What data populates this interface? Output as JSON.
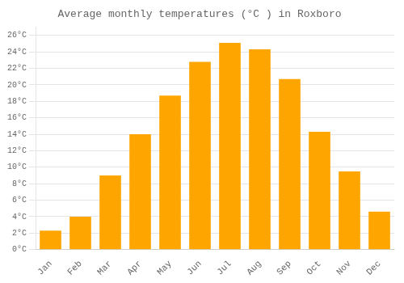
{
  "chart_data": {
    "type": "bar",
    "title": "Average monthly temperatures (°C ) in Roxboro",
    "categories": [
      "Jan",
      "Feb",
      "Mar",
      "Apr",
      "May",
      "Jun",
      "Jul",
      "Aug",
      "Sep",
      "Oct",
      "Nov",
      "Dec"
    ],
    "values": [
      2.3,
      4.0,
      9.0,
      14.0,
      18.7,
      22.8,
      25.1,
      24.3,
      20.7,
      14.3,
      9.5,
      4.6
    ],
    "color": "#FFA500",
    "ylim": [
      0,
      27
    ],
    "yticks": [
      {
        "value": 0,
        "label": "0°C"
      },
      {
        "value": 2,
        "label": "2°C"
      },
      {
        "value": 4,
        "label": "4°C"
      },
      {
        "value": 6,
        "label": "6°C"
      },
      {
        "value": 8,
        "label": "8°C"
      },
      {
        "value": 10,
        "label": "10°C"
      },
      {
        "value": 12,
        "label": "12°C"
      },
      {
        "value": 14,
        "label": "14°C"
      },
      {
        "value": 16,
        "label": "16°C"
      },
      {
        "value": 18,
        "label": "18°C"
      },
      {
        "value": 20,
        "label": "20°C"
      },
      {
        "value": 22,
        "label": "22°C"
      },
      {
        "value": 24,
        "label": "24°C"
      },
      {
        "value": 26,
        "label": "26°C"
      }
    ],
    "grid": true
  }
}
